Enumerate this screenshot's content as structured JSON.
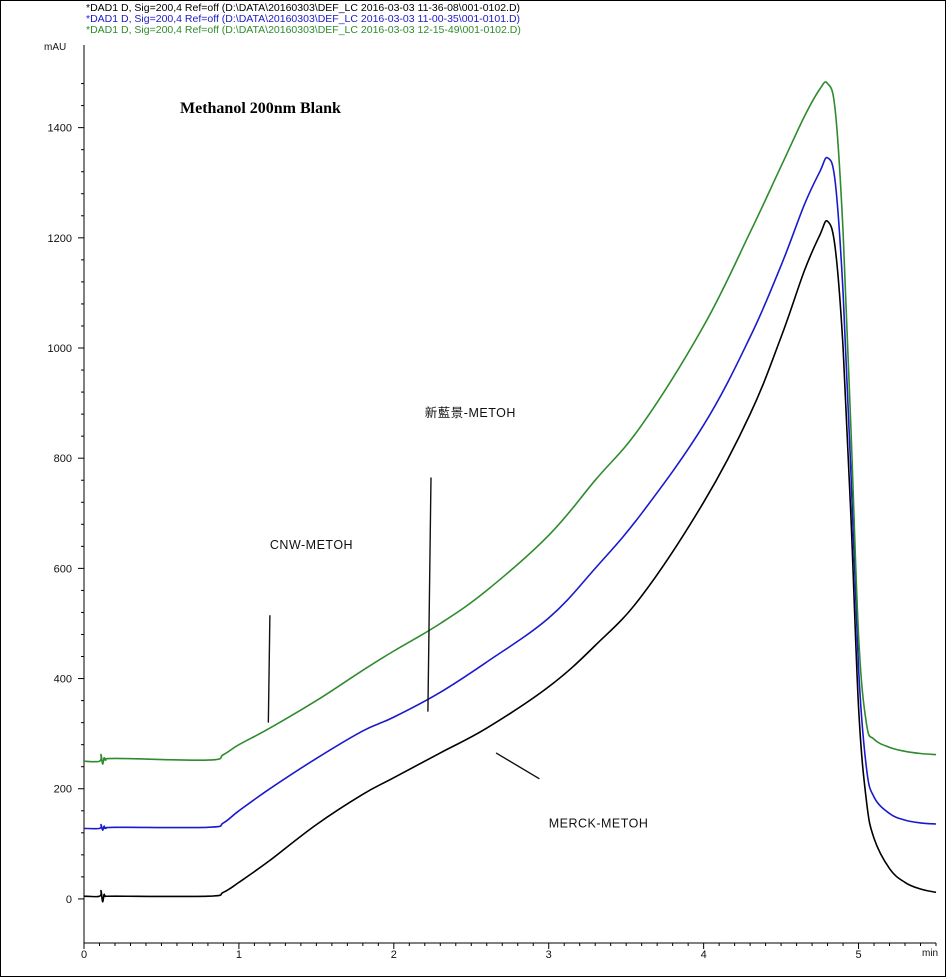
{
  "chart_data": {
    "type": "line",
    "title": "Methanol  200nm  Blank",
    "ylabel": "mAU",
    "xlabel": "min",
    "xlim": [
      0,
      5.5
    ],
    "ylim": [
      -80,
      1550
    ],
    "x_ticks": [
      0,
      1,
      2,
      3,
      4,
      5
    ],
    "x_tick_labels": [
      "0",
      "1",
      "2",
      "3",
      "4",
      "5"
    ],
    "y_ticks": [
      0,
      200,
      400,
      600,
      800,
      1000,
      1200,
      1400
    ],
    "y_tick_labels": [
      "0",
      "200",
      "400",
      "600",
      "800",
      "1000",
      "1200",
      "1400"
    ],
    "grid": false,
    "legend_position": "top-left",
    "series": [
      {
        "name": "*DAD1 D, Sig=200,4 Ref=off (D:\\DATA\\20160303\\DEF_LC 2016-03-03 11-36-08\\001-0102.D)",
        "color": "#000000",
        "x": [
          0,
          0.1,
          0.11,
          0.12,
          0.13,
          0.14,
          0.2,
          0.8,
          0.9,
          1.0,
          1.2,
          1.5,
          1.8,
          2.0,
          2.3,
          2.6,
          3.0,
          3.3,
          3.6,
          4.0,
          4.3,
          4.5,
          4.65,
          4.75,
          4.8,
          4.85,
          4.9,
          4.95,
          5.0,
          5.05,
          5.1,
          5.2,
          5.3,
          5.4,
          5.5
        ],
        "y": [
          5,
          5,
          15,
          -5,
          8,
          5,
          5,
          5,
          12,
          30,
          70,
          135,
          190,
          220,
          265,
          310,
          385,
          460,
          550,
          720,
          880,
          1020,
          1140,
          1205,
          1230,
          1180,
          1000,
          700,
          350,
          180,
          110,
          55,
          30,
          18,
          12
        ]
      },
      {
        "name": "*DAD1 D, Sig=200,4 Ref=off (D:\\DATA\\20160303\\DEF_LC 2016-03-03 11-00-35\\001-0101.D)",
        "color": "#1a1acc",
        "x": [
          0,
          0.1,
          0.11,
          0.12,
          0.13,
          0.14,
          0.2,
          0.8,
          0.9,
          1.0,
          1.2,
          1.5,
          1.8,
          2.0,
          2.3,
          2.6,
          3.0,
          3.3,
          3.6,
          4.0,
          4.3,
          4.5,
          4.65,
          4.75,
          4.8,
          4.85,
          4.9,
          4.95,
          5.0,
          5.05,
          5.1,
          5.2,
          5.3,
          5.4,
          5.5
        ],
        "y": [
          128,
          128,
          135,
          125,
          132,
          128,
          130,
          130,
          138,
          160,
          200,
          255,
          305,
          330,
          375,
          430,
          510,
          600,
          700,
          860,
          1020,
          1150,
          1260,
          1320,
          1345,
          1300,
          1100,
          780,
          420,
          240,
          185,
          155,
          143,
          138,
          136
        ]
      },
      {
        "name": "*DAD1 D, Sig=200,4 Ref=off (D:\\DATA\\20160303\\DEF_LC 2016-03-03 12-15-49\\001-0102.D)",
        "color": "#2e8b2e",
        "x": [
          0,
          0.1,
          0.11,
          0.12,
          0.13,
          0.14,
          0.2,
          0.8,
          0.9,
          1.0,
          1.2,
          1.5,
          1.8,
          2.0,
          2.3,
          2.6,
          3.0,
          3.3,
          3.6,
          4.0,
          4.3,
          4.5,
          4.65,
          4.75,
          4.8,
          4.85,
          4.9,
          4.95,
          5.0,
          5.05,
          5.1,
          5.2,
          5.3,
          5.4,
          5.5
        ],
        "y": [
          250,
          250,
          262,
          245,
          256,
          252,
          255,
          252,
          262,
          280,
          310,
          360,
          415,
          450,
          500,
          560,
          660,
          760,
          860,
          1040,
          1210,
          1330,
          1420,
          1470,
          1480,
          1430,
          1210,
          860,
          480,
          320,
          290,
          275,
          268,
          264,
          262
        ]
      }
    ],
    "annotations": [
      {
        "text": "CNW-METOH",
        "x": 1.2,
        "y": 635
      },
      {
        "text": "新藍景-METOH",
        "x": 2.2,
        "y": 875
      },
      {
        "text": "MERCK-METOH",
        "x": 3.0,
        "y": 130
      }
    ],
    "markers": [
      {
        "x1": 1.2,
        "y1": 515,
        "x2": 1.19,
        "y2": 320
      },
      {
        "x1": 2.24,
        "y1": 765,
        "x2": 2.22,
        "y2": 340
      },
      {
        "x1": 2.66,
        "y1": 265,
        "x2": 2.94,
        "y2": 218
      }
    ]
  }
}
